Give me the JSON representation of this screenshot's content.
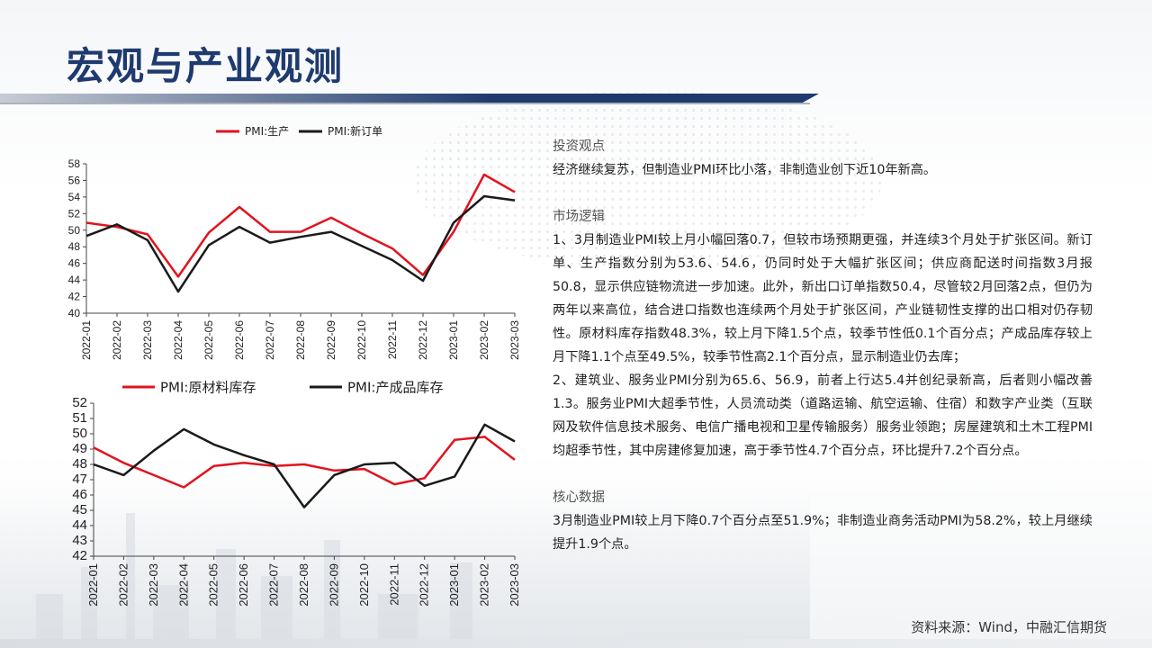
{
  "page": {
    "title": "宏观与产业观测",
    "source": "资料来源：Wind，中融汇信期货"
  },
  "text": {
    "sections": [
      {
        "heading": "投资观点",
        "body": "经济继续复苏，但制造业PMI环比小落，非制造业创下近10年新高。"
      },
      {
        "heading": "市场逻辑",
        "body": "1、3月制造业PMI较上月小幅回落0.7，但较市场预期更强，并连续3个月处于扩张区间。新订单、生产指数分别为53.6、54.6，仍同时处于大幅扩张区间；供应商配送时间指数3月报50.8，显示供应链物流进一步加速。此外，新出口订单指数50.4，尽管较2月回落2点，但仍为两年以来高位，结合进口指数也连续两个月处于扩张区间，产业链韧性支撑的出口相对仍存韧性。原材料库存指数48.3%，较上月下降1.5个点，较季节性低0.1个百分点；产成品库存较上月下降1.1个点至49.5%，较季节性高2.1个百分点，显示制造业仍去库；",
        "body2": "2、建筑业、服务业PMI分别为65.6、56.9，前者上行达5.4并创纪录新高，后者则小幅改善1.3。服务业PMI大超季节性，人员流动类（道路运输、航空运输、住宿）和数字产业类（互联网及软件信息技术服务、电信广播电视和卫星传输服务）服务业领跑；房屋建筑和土木工程PMI均超季节性，其中房建修复加速，高于季节性4.7个百分点，环比提升7.2个百分点。"
      },
      {
        "heading": "核心数据",
        "body": "3月制造业PMI较上月下降0.7个百分点至51.9%；非制造业商务活动PMI为58.2%，较上月继续提升1.9个点。"
      }
    ]
  },
  "chart_data": [
    {
      "type": "line",
      "categories": [
        "2022-01",
        "2022-02",
        "2022-03",
        "2022-04",
        "2022-05",
        "2022-06",
        "2022-07",
        "2022-08",
        "2022-09",
        "2022-10",
        "2022-11",
        "2022-12",
        "2023-01",
        "2023-02",
        "2023-03"
      ],
      "series": [
        {
          "name": "PMI:生产",
          "color": "#e0141e",
          "values": [
            50.9,
            50.4,
            49.5,
            44.4,
            49.7,
            52.8,
            49.8,
            49.8,
            51.5,
            49.6,
            47.8,
            44.6,
            49.8,
            56.7,
            54.6
          ]
        },
        {
          "name": "PMI:新订单",
          "color": "#1a1a1a",
          "values": [
            49.3,
            50.7,
            48.8,
            42.6,
            48.2,
            50.4,
            48.5,
            49.2,
            49.8,
            48.1,
            46.4,
            43.9,
            50.9,
            54.1,
            53.6
          ]
        }
      ],
      "ylim": [
        40,
        58
      ],
      "yticks": [
        40,
        42,
        44,
        46,
        48,
        50,
        52,
        54,
        56,
        58
      ],
      "legend": "top"
    },
    {
      "type": "line",
      "categories": [
        "2022-01",
        "2022-02",
        "2022-03",
        "2022-04",
        "2022-05",
        "2022-06",
        "2022-07",
        "2022-08",
        "2022-09",
        "2022-10",
        "2022-11",
        "2022-12",
        "2023-01",
        "2023-02",
        "2023-03"
      ],
      "series": [
        {
          "name": "PMI:原材料库存",
          "color": "#e0141e",
          "values": [
            49.1,
            48.1,
            47.3,
            46.5,
            47.9,
            48.1,
            47.9,
            48.0,
            47.6,
            47.7,
            46.7,
            47.1,
            49.6,
            49.8,
            48.3
          ]
        },
        {
          "name": "PMI:产成品库存",
          "color": "#1a1a1a",
          "values": [
            48.0,
            47.3,
            48.9,
            50.3,
            49.3,
            48.6,
            48.0,
            45.2,
            47.3,
            48.0,
            48.1,
            46.6,
            47.2,
            50.6,
            49.5
          ]
        }
      ],
      "ylim": [
        42,
        52
      ],
      "yticks": [
        42,
        43,
        44,
        45,
        46,
        47,
        48,
        49,
        50,
        51,
        52
      ],
      "legend": "top"
    }
  ]
}
